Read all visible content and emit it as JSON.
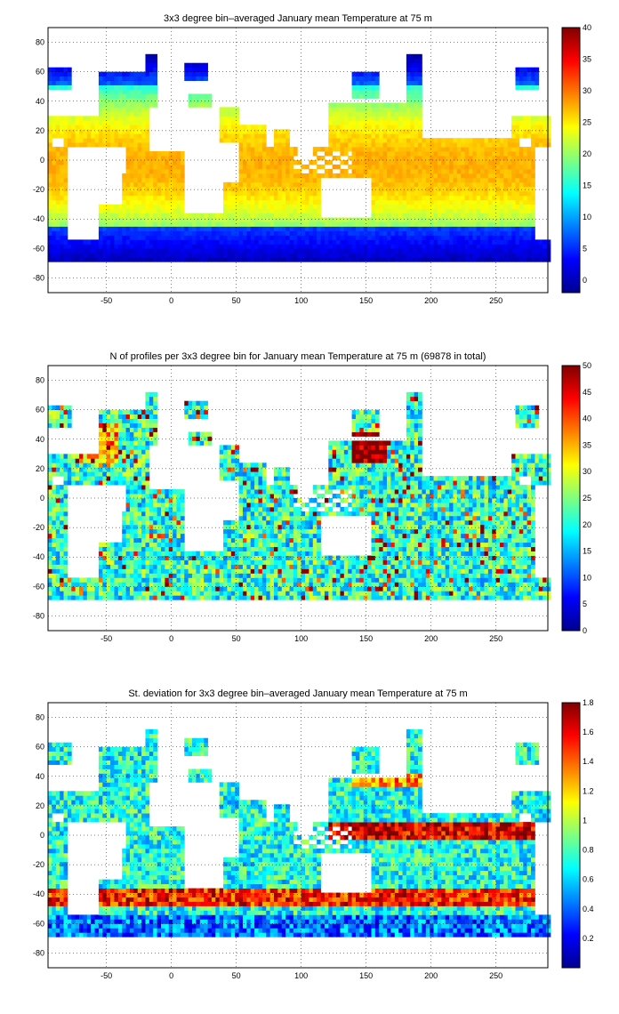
{
  "chart_data": [
    {
      "type": "heatmap",
      "title": "3x3 degree bin–averaged January mean Temperature at 75 m",
      "xlim": [
        -95,
        290
      ],
      "ylim": [
        -90,
        90
      ],
      "x_ticks": [
        -50,
        0,
        50,
        100,
        150,
        200,
        250
      ],
      "y_ticks": [
        80,
        60,
        40,
        20,
        0,
        -20,
        -40,
        -60,
        -80
      ],
      "colorbar": {
        "colormap": "jet",
        "range": [
          -2,
          40
        ],
        "ticks": [
          40,
          35,
          30,
          25,
          20,
          15,
          10,
          5,
          0
        ]
      },
      "grid": true,
      "description_values": {
        "tropics_max": 29,
        "equator": 27,
        "southern_ocean": 0,
        "arctic": 0
      }
    },
    {
      "type": "heatmap",
      "title": "N of profiles per 3x3 degree bin for January mean Temperature at 75 m (69878 in total)",
      "xlim": [
        -95,
        290
      ],
      "ylim": [
        -90,
        90
      ],
      "x_ticks": [
        -50,
        0,
        50,
        100,
        150,
        200,
        250
      ],
      "y_ticks": [
        80,
        60,
        40,
        20,
        0,
        -20,
        -40,
        -60,
        -80
      ],
      "colorbar": {
        "colormap": "jet",
        "range": [
          0,
          50
        ],
        "ticks": [
          50,
          45,
          40,
          35,
          30,
          25,
          20,
          15,
          10,
          5,
          0
        ]
      },
      "grid": true
    },
    {
      "type": "heatmap",
      "title": "St. deviation for 3x3 degree bin–averaged January mean Temperature at 75 m",
      "xlim": [
        -95,
        290
      ],
      "ylim": [
        -90,
        90
      ],
      "x_ticks": [
        -50,
        0,
        50,
        100,
        150,
        200,
        250
      ],
      "y_ticks": [
        80,
        60,
        40,
        20,
        0,
        -20,
        -40,
        -60,
        -80
      ],
      "colorbar": {
        "colormap": "jet",
        "range": [
          0,
          1.8
        ],
        "ticks": [
          1.8,
          1.6,
          1.4,
          1.2,
          1,
          0.8,
          0.6,
          0.4,
          0.2
        ]
      },
      "grid": true
    }
  ]
}
